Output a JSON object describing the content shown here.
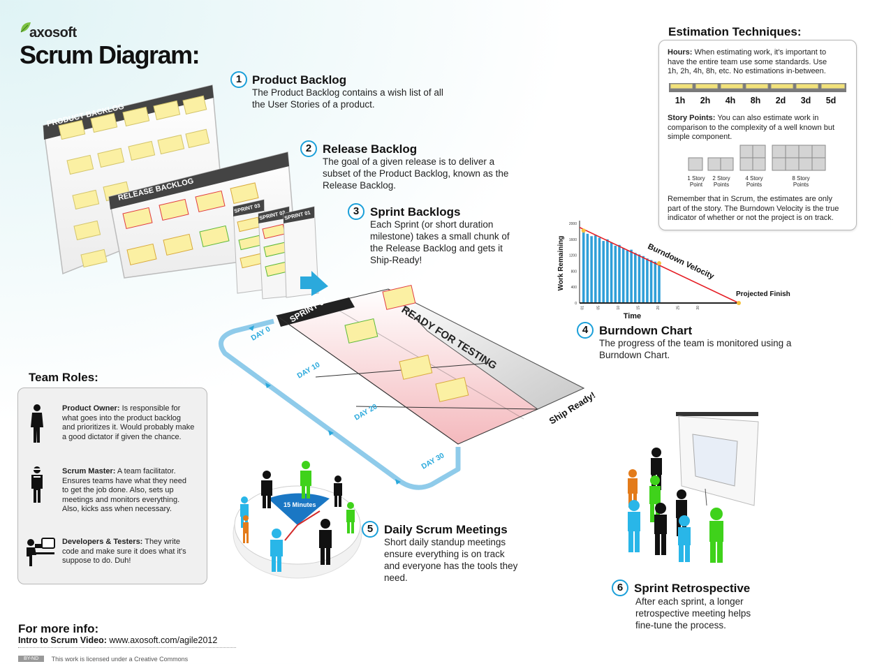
{
  "header": {
    "logo_text": "axosoft",
    "title": "Scrum Diagram:"
  },
  "steps": [
    {
      "number": "1",
      "title": "Product Backlog",
      "desc_lines": [
        "The Product Backlog contains a wish list of all",
        "the User Stories of a product."
      ]
    },
    {
      "number": "2",
      "title": "Release Backlog",
      "desc_lines": [
        "The goal of a given release is to deliver a",
        "subset of the Product Backlog, known as the",
        "Release Backlog."
      ]
    },
    {
      "number": "3",
      "title": "Sprint Backlogs",
      "desc_lines": [
        "Each Sprint (or short duration",
        "milestone) takes a small chunk of",
        "the Release Backlog and gets it",
        "Ship-Ready!"
      ]
    },
    {
      "number": "4",
      "title": "Burndown Chart",
      "desc_lines": [
        "The progress of the team is monitored using a",
        "Burndown Chart."
      ]
    },
    {
      "number": "5",
      "title": "Daily Scrum Meetings",
      "desc_lines": [
        "Short daily standup meetings",
        "ensure everything is on track",
        "and everyone has the tools they",
        "need."
      ]
    },
    {
      "number": "6",
      "title": "Sprint Retrospective",
      "desc_lines": [
        "After each sprint, a longer",
        "retrospective meeting helps",
        "fine-tune the process."
      ]
    }
  ],
  "boards": {
    "product_backlog": "PRODUCT BACKLOG",
    "release_backlog": "RELEASE BACKLOG",
    "sprint_03": "SPRINT 03",
    "sprint_02": "SPRINT 02",
    "sprint_01": "SPRINT 01",
    "sprint_big": "SPRINT 01",
    "ready_for_testing": "READY FOR TESTING",
    "ship_ready": "Ship Ready!",
    "days": [
      "DAY 0",
      "DAY 10",
      "DAY 20",
      "DAY 30"
    ]
  },
  "meeting": {
    "clock_label": "15 Minutes"
  },
  "estimation": {
    "heading": "Estimation Techniques:",
    "hours_title": "Hours:",
    "hours_lines": [
      "When estimating work, it's important to",
      "have the entire team use some standards. Use",
      "1h, 2h, 4h, 8h, etc. No estimations in-between."
    ],
    "time_units": [
      "1h",
      "2h",
      "4h",
      "8h",
      "2d",
      "3d",
      "5d"
    ],
    "points_title": "Story Points:",
    "points_lines": [
      "You can also estimate work in",
      "comparison to the complexity of a well known but",
      "simple component."
    ],
    "point_labels": [
      [
        "1 Story",
        "Point"
      ],
      [
        "2 Story",
        "Points"
      ],
      [
        "4 Story",
        "Points"
      ],
      [
        "8 Story",
        "Points"
      ]
    ],
    "footer_lines": [
      "Remember that in Scrum, the estimates are only",
      "part of the story. The Burndown Velocity is the true",
      "indicator of whether or not the project is on track."
    ]
  },
  "chart_data": {
    "type": "bar",
    "xlabel": "Time",
    "ylabel": "Work Remaining",
    "x": [
      1,
      2,
      3,
      4,
      5,
      6,
      7,
      8,
      9,
      10,
      11,
      12,
      13,
      14,
      15,
      16,
      17,
      18,
      19,
      20
    ],
    "values": [
      1820,
      1740,
      1680,
      1700,
      1640,
      1560,
      1600,
      1520,
      1440,
      1460,
      1380,
      1320,
      1340,
      1260,
      1220,
      1180,
      1120,
      1080,
      1040,
      1000
    ],
    "x_ticks": [
      "01",
      "05",
      "10",
      "15",
      "20",
      "25",
      "30"
    ],
    "y_ticks": [
      "0",
      "400",
      "800",
      "1200",
      "1600",
      "2000"
    ],
    "xlim": [
      0,
      40
    ],
    "ylim": [
      0,
      2000
    ],
    "annotations": [
      "Burndown Velocity",
      "Projected Finish"
    ],
    "velocity_line": {
      "start": [
        0,
        1900
      ],
      "end": [
        40,
        0
      ]
    },
    "colors": {
      "bars": "#2f9fd8",
      "velocity": "#e51d24",
      "marker": "#f6c23e"
    }
  },
  "team_roles": {
    "heading": "Team Roles:",
    "roles": [
      {
        "title": "Product Owner:",
        "lines": [
          "Is responsible for",
          "what goes into the product backlog",
          "and prioritizes it. Would probably make",
          "a good dictator if given the chance."
        ]
      },
      {
        "title": "Scrum Master:",
        "lines": [
          "A team facilitator.",
          "Ensures teams have what they need",
          "to get the job done. Also, sets up",
          "meetings and monitors everything.",
          "Also, kicks ass when necessary."
        ]
      },
      {
        "title": "Developers & Testers:",
        "lines": [
          "They write",
          "code and make sure it does what it's",
          "suppose to do. Duh!"
        ]
      }
    ]
  },
  "footer": {
    "more_info": "For more info:",
    "video_label": "Intro to Scrum Video:",
    "video_url": "www.axosoft.com/agile2012",
    "license_badge": "BY-ND",
    "license_text": "This work is licensed under a Creative Commons"
  },
  "colors": {
    "accent_blue": "#1a9fd9",
    "sticky_yellow": "#fbf0a3",
    "sticky_red": "#e0393e",
    "sticky_green": "#5ab837",
    "board_header": "#444444",
    "person_black": "#111111",
    "person_blue": "#29b6e8",
    "person_green": "#3fd21b",
    "person_orange": "#e37b1a"
  }
}
